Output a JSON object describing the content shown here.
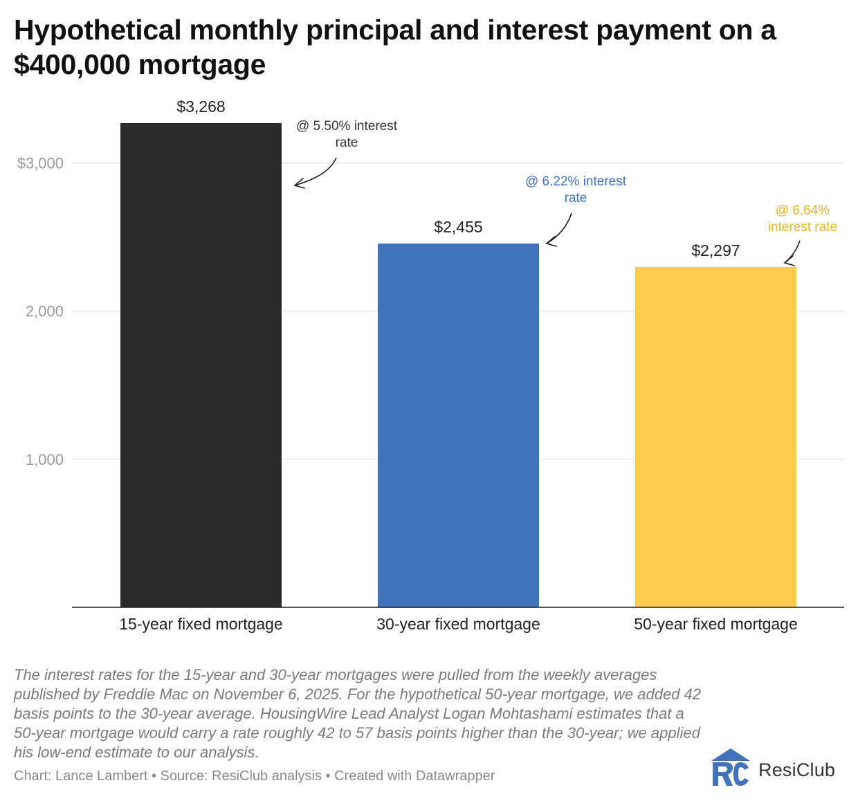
{
  "title": "Hypothetical monthly principal and interest payment on a $400,000 mortgage",
  "chart_data": {
    "type": "bar",
    "title": "Hypothetical monthly principal and interest payment on a $400,000 mortgage",
    "categories": [
      "15-year fixed mortgage",
      "30-year fixed mortgage",
      "50-year fixed mortgage"
    ],
    "values": [
      3268,
      2455,
      2297
    ],
    "value_labels": [
      "$3,268",
      "$2,455",
      "$2,297"
    ],
    "colors": [
      "#2b2b2b",
      "#4172bc",
      "#fecb4b"
    ],
    "ylim": [
      0,
      3268
    ],
    "yticks": [
      1000,
      2000,
      3000
    ],
    "ytick_labels": [
      "1,000",
      "2,000",
      "$3,000"
    ],
    "grid": true,
    "annotations": [
      {
        "lines": [
          "@ 5.50% interest",
          "rate"
        ],
        "color": "#333333"
      },
      {
        "lines": [
          "@ 6.22% interest",
          "rate"
        ],
        "color": "#4172bc"
      },
      {
        "lines": [
          "@ 6.64%",
          "interest rate"
        ],
        "color": "#e6b52a"
      }
    ]
  },
  "notes": "The interest rates for the 15-year and 30-year mortgages were pulled from the weekly averages published by Freddie Mac on November 6, 2025. For the hypothetical 50-year mortgage, we added 42 basis points to the 30-year average. HousingWire Lead Analyst Logan Mohtashami estimates that a 50-year mortgage would carry a rate roughly 42 to 57 basis points higher than the 30-year; we applied his low-end estimate to our analysis.",
  "credit": "Chart: Lance Lambert • Source: ResiClub analysis • Created with Datawrapper",
  "logo": {
    "name": "ResiClub",
    "colors": {
      "roof": "#4172bc",
      "letters": "#4172bc"
    }
  }
}
